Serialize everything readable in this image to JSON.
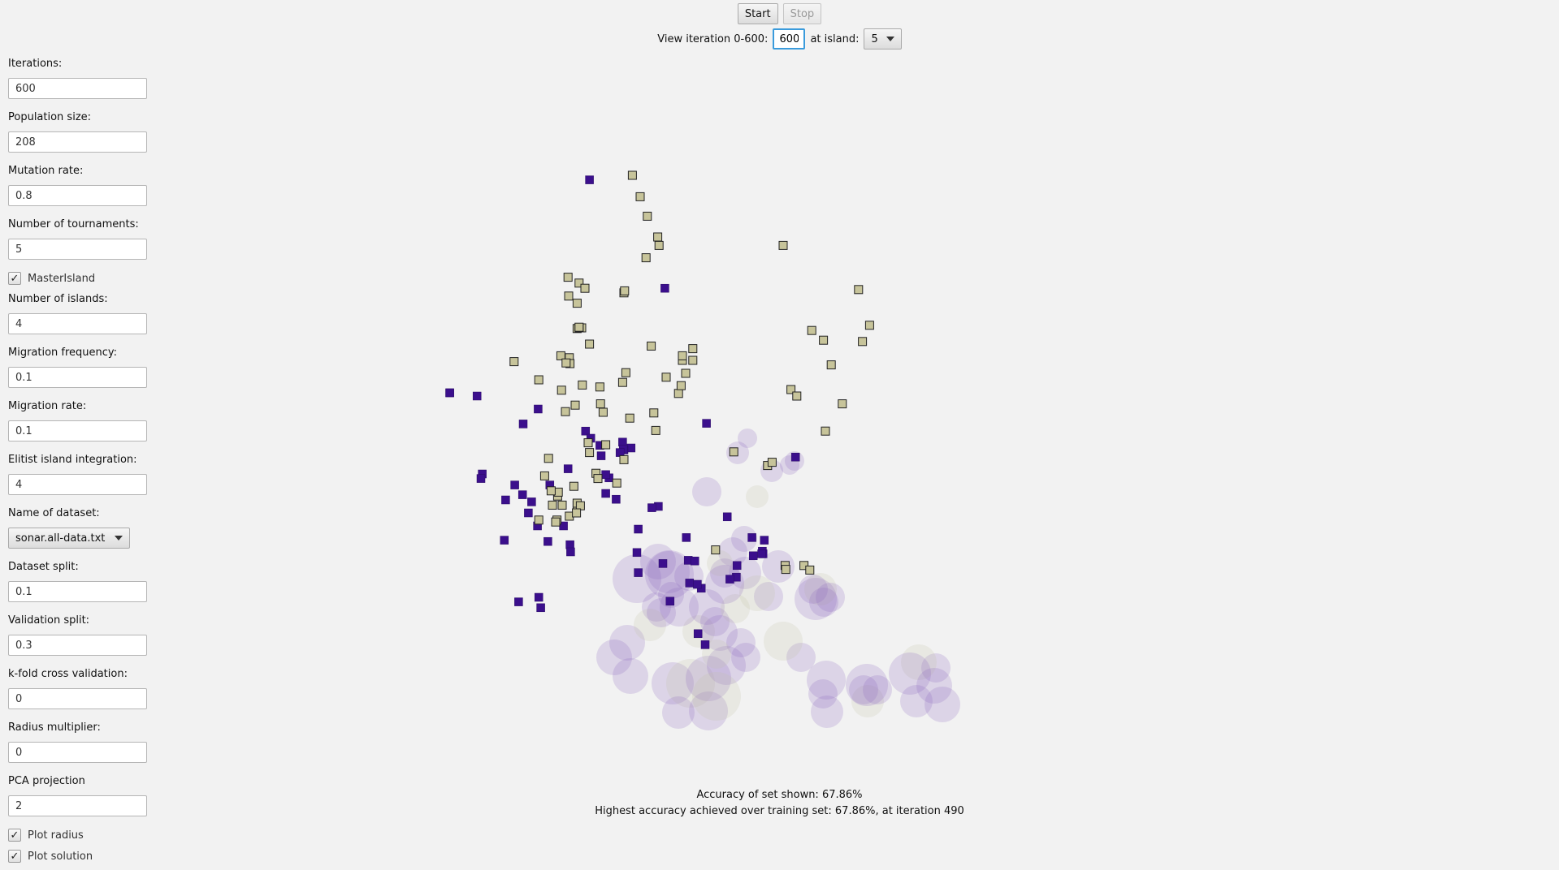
{
  "toolbar": {
    "start_label": "Start",
    "stop_label": "Stop"
  },
  "iteration": {
    "label": "View iteration 0-600:",
    "value": "600",
    "island_label": "at island:",
    "island_value": "5"
  },
  "sidebar": {
    "iterations": {
      "label": "Iterations:",
      "value": "600"
    },
    "population": {
      "label": "Population size:",
      "value": "208"
    },
    "mutation": {
      "label": "Mutation rate:",
      "value": "0.8"
    },
    "tournaments": {
      "label": "Number of tournaments:",
      "value": "5"
    },
    "master_island": {
      "label": "MasterIsland",
      "checked": true
    },
    "islands": {
      "label": "Number of islands:",
      "value": "4"
    },
    "migration_freq": {
      "label": "Migration frequency:",
      "value": "0.1"
    },
    "migration_rate": {
      "label": "Migration rate:",
      "value": "0.1"
    },
    "elitist": {
      "label": "Elitist island integration:",
      "value": "4"
    },
    "dataset": {
      "label": "Name of dataset:",
      "value": "sonar.all-data.txt"
    },
    "dataset_split": {
      "label": "Dataset split:",
      "value": "0.1"
    },
    "validation_split": {
      "label": "Validation split:",
      "value": "0.3"
    },
    "kfold": {
      "label": "k-fold cross validation:",
      "value": "0"
    },
    "radius_mult": {
      "label": "Radius multiplier:",
      "value": "0"
    },
    "pca": {
      "label": "PCA projection",
      "value": "2"
    },
    "plot_radius": {
      "label": "Plot radius",
      "checked": true
    },
    "plot_solution": {
      "label": "Plot solution",
      "checked": true
    }
  },
  "footer": {
    "accuracy_shown": "Accuracy of set shown: 67.86%",
    "highest_accuracy": "Highest accuracy achieved over training set: 67.86%, at iteration 490"
  },
  "colors": {
    "class_a_fill": "#3b0f8c",
    "class_b_fill": "#c7c49a",
    "class_a_halo": "#8d6bc0",
    "class_b_halo": "#c5c3a7"
  },
  "chart_data": {
    "type": "scatter",
    "series": [
      {
        "points": [
          [
            907,
            277
          ],
          [
            1023,
            444
          ],
          [
            692,
            605
          ],
          [
            734,
            610
          ],
          [
            1087,
            652
          ],
          [
            828,
            630
          ],
          [
            805,
            653
          ],
          [
            901,
            664
          ],
          [
            909,
            675
          ],
          [
            932,
            760
          ],
          [
            982,
            815
          ],
          [
            1119,
            796
          ],
          [
            1224,
            704
          ],
          [
            1176,
            832
          ],
          [
            1173,
            849
          ],
          [
            1134,
            871
          ],
          [
            1133,
            889
          ],
          [
            1159,
            856
          ],
          [
            1061,
            898
          ],
          [
            1056,
            828
          ],
          [
            1059,
            863
          ],
          [
            1013,
            780
          ],
          [
            1003,
            782
          ],
          [
            1020,
            868
          ],
          [
            1031,
            926
          ],
          [
            1069,
            864
          ],
          [
            1079,
            906
          ],
          [
            1074,
            976
          ],
          [
            1085,
            993
          ],
          [
            937,
            736
          ],
          [
            958,
            681
          ],
          [
            971,
            690
          ],
          [
            960,
            693
          ],
          [
            959,
            692
          ],
          [
            954,
            697
          ],
          [
            925,
            702
          ],
          [
            923,
            686
          ],
          [
            874,
            722
          ],
          [
            846,
            747
          ],
          [
            932,
            731
          ],
          [
            948,
            769
          ],
          [
            982,
            882
          ],
          [
            1073,
            900
          ],
          [
            980,
            851
          ],
          [
            1174,
            853
          ],
          [
            1123,
            892
          ],
          [
            1157,
            828
          ],
          [
            818,
            773
          ],
          [
            1172,
            853
          ],
          [
            776,
            832
          ],
          [
            813,
            790
          ],
          [
            827,
            810
          ],
          [
            843,
            834
          ],
          [
            829,
            920
          ],
          [
            877,
            839
          ],
          [
            878,
            850
          ],
          [
            867,
            810
          ],
          [
            832,
            936
          ],
          [
            798,
            927
          ],
          [
            742,
            730
          ],
          [
            792,
            747
          ],
          [
            804,
            762
          ],
          [
            778,
            770
          ],
          [
            740,
            737
          ],
          [
            692,
            605
          ]
        ]
      },
      {
        "points": [
          [
            973,
            270
          ],
          [
            985,
            303
          ],
          [
            996,
            333
          ],
          [
            1012,
            365
          ],
          [
            1014,
            378
          ],
          [
            994,
            397
          ],
          [
            1205,
            378
          ],
          [
            1321,
            446
          ],
          [
            1338,
            501
          ],
          [
            1327,
            526
          ],
          [
            1249,
            509
          ],
          [
            1267,
            524
          ],
          [
            1279,
            562
          ],
          [
            1217,
            600
          ],
          [
            1226,
            610
          ],
          [
            1296,
            622
          ],
          [
            1270,
            664
          ],
          [
            1129,
            696
          ],
          [
            1181,
            717
          ],
          [
            1188,
            712
          ],
          [
            1208,
            871
          ],
          [
            1209,
            877
          ],
          [
            1101,
            847
          ],
          [
            1237,
            871
          ],
          [
            1246,
            878
          ],
          [
            1066,
            537
          ],
          [
            1066,
            555
          ],
          [
            1050,
            555
          ],
          [
            1044,
            606
          ],
          [
            1025,
            581
          ],
          [
            1055,
            575
          ],
          [
            1048,
            594
          ],
          [
            1006,
            636
          ],
          [
            1009,
            663
          ],
          [
            1050,
            548
          ],
          [
            1002,
            533
          ],
          [
            960,
            451
          ],
          [
            961,
            448
          ],
          [
            874,
            427
          ],
          [
            891,
            436
          ],
          [
            900,
            444
          ],
          [
            875,
            456
          ],
          [
            888,
            467
          ],
          [
            888,
            506
          ],
          [
            895,
            505
          ],
          [
            907,
            530
          ],
          [
            863,
            548
          ],
          [
            876,
            551
          ],
          [
            877,
            560
          ],
          [
            923,
            596
          ],
          [
            928,
            635
          ],
          [
            958,
            589
          ],
          [
            932,
            685
          ],
          [
            917,
            729
          ],
          [
            920,
            737
          ],
          [
            949,
            744
          ],
          [
            969,
            644
          ],
          [
            871,
            559
          ],
          [
            896,
            593
          ],
          [
            829,
            585
          ],
          [
            864,
            601
          ],
          [
            870,
            634
          ],
          [
            905,
            682
          ],
          [
            963,
            574
          ],
          [
            960,
            708
          ],
          [
            883,
            749
          ],
          [
            888,
            778
          ],
          [
            865,
            778
          ],
          [
            858,
            764
          ],
          [
            859,
            758
          ],
          [
            844,
            706
          ],
          [
            838,
            733
          ],
          [
            848,
            756
          ],
          [
            850,
            778
          ],
          [
            857,
            801
          ],
          [
            888,
            775
          ],
          [
            876,
            795
          ],
          [
            893,
            779
          ],
          [
            907,
            697
          ],
          [
            855,
            804
          ],
          [
            887,
            790
          ],
          [
            829,
            801
          ],
          [
            791,
            557
          ],
          [
            924,
            622
          ],
          [
            885,
            624
          ],
          [
            891,
            505
          ],
          [
            891,
            504
          ]
        ]
      }
    ]
  }
}
